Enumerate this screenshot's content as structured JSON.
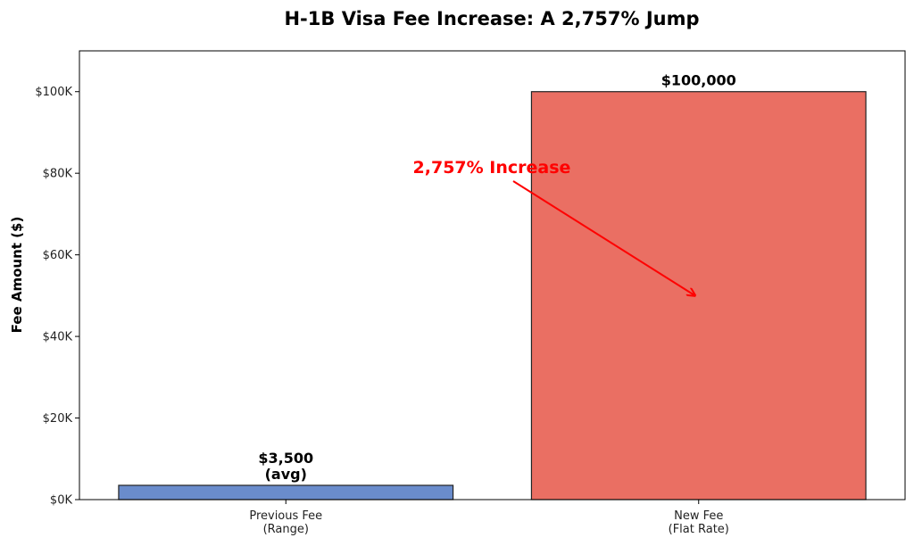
{
  "chart_data": {
    "type": "bar",
    "title": "H-1B Visa Fee Increase: A 2,757% Jump",
    "xlabel": "",
    "ylabel": "Fee Amount ($)",
    "ylim": [
      0,
      110000
    ],
    "yticks": [
      {
        "value": 0,
        "label": "$0K"
      },
      {
        "value": 20000,
        "label": "$20K"
      },
      {
        "value": 40000,
        "label": "$40K"
      },
      {
        "value": 60000,
        "label": "$60K"
      },
      {
        "value": 80000,
        "label": "$80K"
      },
      {
        "value": 100000,
        "label": "$100K"
      }
    ],
    "categories": [
      {
        "lines": [
          "Previous Fee",
          "(Range)"
        ]
      },
      {
        "lines": [
          "New Fee",
          "(Flat Rate)"
        ]
      }
    ],
    "values": [
      3500,
      100000
    ],
    "data_labels": [
      [
        "$3,500",
        "(avg)"
      ],
      [
        "$100,000"
      ]
    ],
    "colors": [
      "#6a8ccc",
      "#ea6f63"
    ],
    "grid": false,
    "annotation": {
      "text": "2,757% Increase",
      "color": "#ff0000",
      "arrow_target": {
        "category_index": 1,
        "value": 50000
      }
    }
  }
}
